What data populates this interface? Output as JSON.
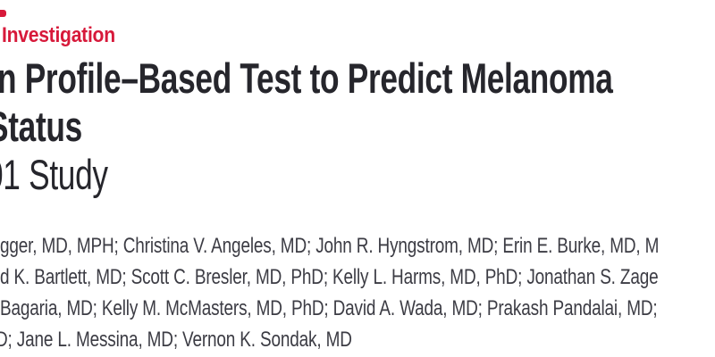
{
  "header": {
    "category": "Investigation",
    "title_lines": [
      "n Profile–Based Test to Predict Melanoma",
      "Status"
    ],
    "subtitle_line": "01 Study",
    "author_lines": [
      "gger, MD, MPH; Christina V. Angeles, MD; John R. Hyngstrom, MD; Erin E. Burke, MD, M",
      "d K. Bartlett, MD; Scott C. Bresler, MD, PhD; Kelly L. Harms, MD, PhD; Jonathan S. Zage",
      "Bagaria, MD; Kelly M. McMasters, MD, PhD; David A. Wada, MD; Prakash Pandalai, MD;",
      "D; Jane L. Messina, MD; Vernon K. Sondak, MD"
    ],
    "colors": {
      "accent_red": "#d7193a",
      "title_text": "#26262c",
      "author_text": "#3c3c44",
      "background": "#ffffff"
    }
  }
}
